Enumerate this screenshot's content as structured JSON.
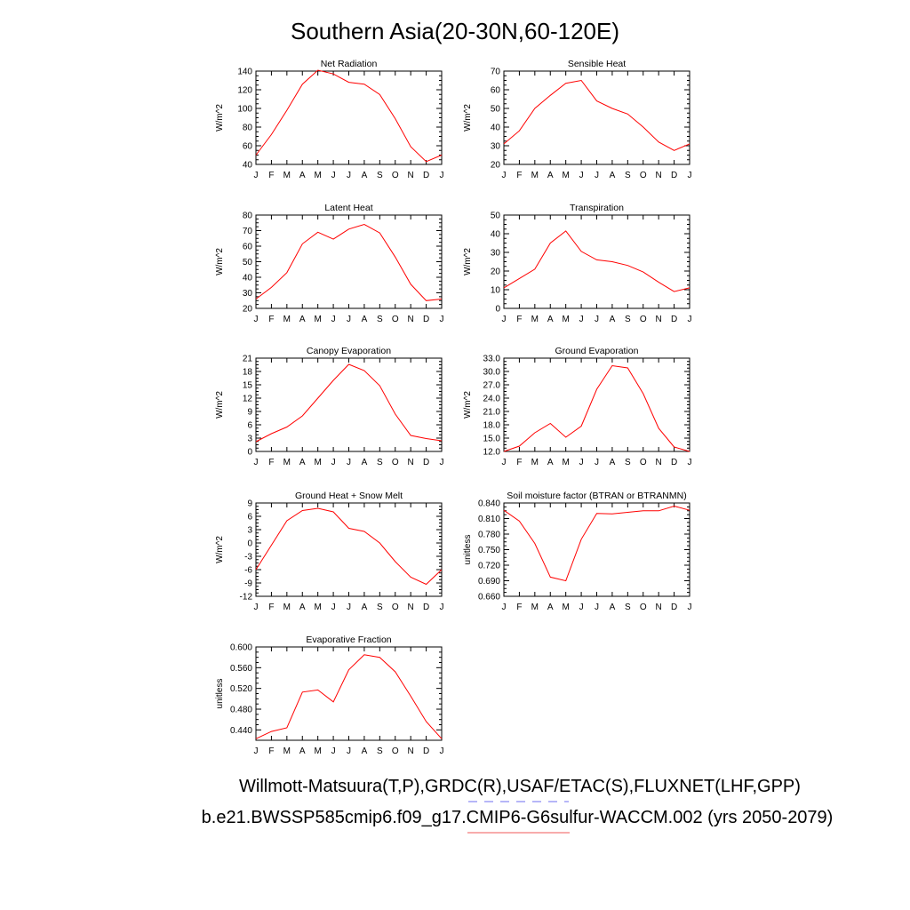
{
  "title": "Southern Asia(20-30N,60-120E)",
  "footer": {
    "line1": "Willmott-Matsuura(T,P),GRDC(R),USAF/ETAC(S),FLUXNET(LHF,GPP)",
    "line2": "b.e21.BWSSP585cmip6.f09_g17.CMIP6-G6sulfur-WACCM.002 (yrs 2050-2079)",
    "dash_color": "#6e6ef0",
    "underline_color": "#f05a5a"
  },
  "line_color": "#ff0000",
  "chart_data": [
    {
      "type": "line",
      "title": "Net Radiation",
      "ylabel": "W/m^2",
      "x_ticks": [
        "J",
        "F",
        "M",
        "A",
        "M",
        "J",
        "J",
        "A",
        "S",
        "O",
        "N",
        "D",
        "J"
      ],
      "y_ticks": [
        "40",
        "60",
        "80",
        "100",
        "120",
        "140"
      ],
      "ylim": [
        40,
        140
      ],
      "values": [
        50,
        72,
        98,
        126,
        141,
        137,
        128,
        126,
        115,
        89,
        59,
        43,
        50
      ]
    },
    {
      "type": "line",
      "title": "Sensible Heat",
      "ylabel": "W/m^2",
      "x_ticks": [
        "J",
        "F",
        "M",
        "A",
        "M",
        "J",
        "J",
        "A",
        "S",
        "O",
        "N",
        "D",
        "J"
      ],
      "y_ticks": [
        "20",
        "30",
        "40",
        "50",
        "60",
        "70"
      ],
      "ylim": [
        20,
        70
      ],
      "values": [
        31,
        38,
        50,
        57,
        63.5,
        65,
        54,
        50,
        47,
        40,
        32,
        27.5,
        31
      ]
    },
    {
      "type": "line",
      "title": "Latent Heat",
      "ylabel": "W/m^2",
      "x_ticks": [
        "J",
        "F",
        "M",
        "A",
        "M",
        "J",
        "J",
        "A",
        "S",
        "O",
        "N",
        "D",
        "J"
      ],
      "y_ticks": [
        "20",
        "30",
        "40",
        "50",
        "60",
        "70",
        "80"
      ],
      "ylim": [
        20,
        80
      ],
      "values": [
        26,
        33.5,
        43,
        61.5,
        69,
        64.5,
        71,
        74,
        68.5,
        53,
        35.5,
        25,
        26
      ]
    },
    {
      "type": "line",
      "title": "Transpiration",
      "ylabel": "W/m^2",
      "x_ticks": [
        "J",
        "F",
        "M",
        "A",
        "M",
        "J",
        "J",
        "A",
        "S",
        "O",
        "N",
        "D",
        "J"
      ],
      "y_ticks": [
        "0",
        "10",
        "20",
        "30",
        "40",
        "50"
      ],
      "ylim": [
        0,
        50
      ],
      "values": [
        11,
        16,
        21,
        35,
        41.5,
        30.5,
        26,
        25,
        23,
        19.5,
        14,
        9,
        11
      ]
    },
    {
      "type": "line",
      "title": "Canopy Evaporation",
      "ylabel": "W/m^2",
      "x_ticks": [
        "J",
        "F",
        "M",
        "A",
        "M",
        "J",
        "J",
        "A",
        "S",
        "O",
        "N",
        "D",
        "J"
      ],
      "y_ticks": [
        "0",
        "3",
        "6",
        "9",
        "12",
        "15",
        "18",
        "21"
      ],
      "ylim": [
        0,
        21
      ],
      "values": [
        2.2,
        4,
        5.5,
        8,
        12,
        16,
        19.6,
        18.2,
        14.8,
        8.4,
        3.6,
        2.9,
        2.4
      ]
    },
    {
      "type": "line",
      "title": "Ground Evaporation",
      "ylabel": "W/m^2",
      "x_ticks": [
        "J",
        "F",
        "M",
        "A",
        "M",
        "J",
        "J",
        "A",
        "S",
        "O",
        "N",
        "D",
        "J"
      ],
      "y_ticks": [
        "12.0",
        "15.0",
        "18.0",
        "21.0",
        "24.0",
        "27.0",
        "30.0",
        "33.0"
      ],
      "ylim": [
        12,
        33
      ],
      "values": [
        12,
        13.2,
        16.2,
        18.3,
        15.2,
        17.7,
        26,
        31.3,
        30.8,
        25,
        17.2,
        13,
        12
      ]
    },
    {
      "type": "line",
      "title": "Ground Heat + Snow Melt",
      "ylabel": "W/m^2",
      "x_ticks": [
        "J",
        "F",
        "M",
        "A",
        "M",
        "J",
        "J",
        "A",
        "S",
        "O",
        "N",
        "D",
        "J"
      ],
      "y_ticks": [
        "-12",
        "-9",
        "-6",
        "-3",
        "0",
        "3",
        "6",
        "9"
      ],
      "ylim": [
        -12,
        9
      ],
      "values": [
        -6,
        -0.5,
        5,
        7.3,
        7.8,
        7,
        3.3,
        2.6,
        0,
        -4.2,
        -7.7,
        -9.3,
        -6
      ]
    },
    {
      "type": "line",
      "title": "Soil moisture factor (BTRAN or BTRANMN)",
      "ylabel": "unitless",
      "x_ticks": [
        "J",
        "F",
        "M",
        "A",
        "M",
        "J",
        "J",
        "A",
        "S",
        "O",
        "N",
        "D",
        "J"
      ],
      "y_ticks": [
        "0.660",
        "0.690",
        "0.720",
        "0.750",
        "0.780",
        "0.810",
        "0.840"
      ],
      "ylim": [
        0.66,
        0.84
      ],
      "values": [
        0.826,
        0.805,
        0.762,
        0.697,
        0.69,
        0.77,
        0.82,
        0.819,
        0.822,
        0.825,
        0.825,
        0.834,
        0.826
      ]
    },
    {
      "type": "line",
      "title": "Evaporative Fraction",
      "ylabel": "unitless",
      "x_ticks": [
        "J",
        "F",
        "M",
        "A",
        "M",
        "J",
        "J",
        "A",
        "S",
        "O",
        "N",
        "D",
        "J"
      ],
      "y_ticks": [
        "0.440",
        "0.480",
        "0.520",
        "0.560",
        "0.600"
      ],
      "ylim": [
        0.42,
        0.6
      ],
      "values": [
        0.423,
        0.437,
        0.444,
        0.513,
        0.517,
        0.494,
        0.556,
        0.585,
        0.58,
        0.552,
        0.505,
        0.456,
        0.423
      ]
    }
  ]
}
